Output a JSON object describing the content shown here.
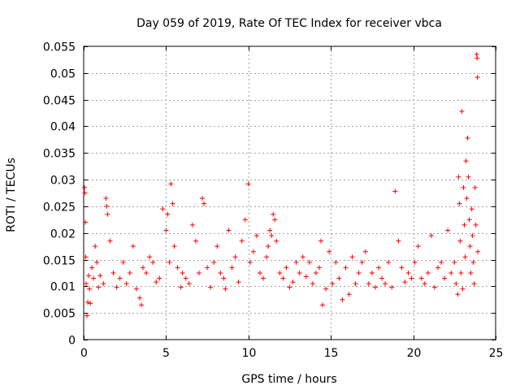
{
  "chart_data": {
    "type": "scatter",
    "title": "Day 059 of 2019, Rate Of TEC Index for receiver vbca",
    "xlabel": "GPS time / hours",
    "ylabel": "ROTI / TECUs",
    "xlim": [
      0,
      25
    ],
    "ylim": [
      0,
      0.055
    ],
    "grid": true,
    "marker": "+",
    "marker_color": "#ff0000",
    "x_ticks": [
      0,
      5,
      10,
      15,
      20,
      25
    ],
    "x_tick_labels": [
      "0",
      "5",
      "10",
      "15",
      "20",
      "25"
    ],
    "y_ticks": [
      0,
      0.005,
      0.01,
      0.015,
      0.02,
      0.025,
      0.03,
      0.035,
      0.04,
      0.045,
      0.05,
      0.055
    ],
    "y_tick_labels": [
      "0",
      "0.005",
      "0.01",
      "0.015",
      "0.02",
      "0.025",
      "0.03",
      "0.035",
      "0.04",
      "0.045",
      "0.05",
      "0.055"
    ],
    "series": [
      {
        "name": "ROTI",
        "points": [
          [
            0.05,
            0.0285
          ],
          [
            0.08,
            0.0275
          ],
          [
            0.1,
            0.022
          ],
          [
            0.12,
            0.0155
          ],
          [
            0.15,
            0.0105
          ],
          [
            0.2,
            0.0045
          ],
          [
            0.25,
            0.007
          ],
          [
            0.3,
            0.012
          ],
          [
            0.35,
            0.0095
          ],
          [
            0.4,
            0.0068
          ],
          [
            0.5,
            0.0135
          ],
          [
            0.6,
            0.0115
          ],
          [
            0.7,
            0.0175
          ],
          [
            0.8,
            0.0145
          ],
          [
            0.9,
            0.0098
          ],
          [
            1.0,
            0.012
          ],
          [
            1.2,
            0.0105
          ],
          [
            1.35,
            0.0265
          ],
          [
            1.4,
            0.025
          ],
          [
            1.45,
            0.0235
          ],
          [
            1.6,
            0.0185
          ],
          [
            1.8,
            0.0125
          ],
          [
            2.0,
            0.0098
          ],
          [
            2.2,
            0.0115
          ],
          [
            2.4,
            0.0145
          ],
          [
            2.6,
            0.0105
          ],
          [
            2.8,
            0.0125
          ],
          [
            3.0,
            0.0175
          ],
          [
            3.2,
            0.0095
          ],
          [
            3.4,
            0.0078
          ],
          [
            3.5,
            0.0065
          ],
          [
            3.6,
            0.0135
          ],
          [
            3.8,
            0.0125
          ],
          [
            4.0,
            0.0155
          ],
          [
            4.2,
            0.0145
          ],
          [
            4.4,
            0.0108
          ],
          [
            4.6,
            0.0115
          ],
          [
            4.8,
            0.0245
          ],
          [
            5.0,
            0.0205
          ],
          [
            5.1,
            0.0235
          ],
          [
            5.2,
            0.0145
          ],
          [
            5.3,
            0.0292
          ],
          [
            5.4,
            0.0255
          ],
          [
            5.5,
            0.0175
          ],
          [
            5.7,
            0.0135
          ],
          [
            5.9,
            0.0098
          ],
          [
            6.0,
            0.0125
          ],
          [
            6.2,
            0.0115
          ],
          [
            6.4,
            0.0105
          ],
          [
            6.6,
            0.0215
          ],
          [
            6.8,
            0.0185
          ],
          [
            7.0,
            0.0125
          ],
          [
            7.2,
            0.0265
          ],
          [
            7.3,
            0.0255
          ],
          [
            7.5,
            0.0135
          ],
          [
            7.7,
            0.0098
          ],
          [
            7.9,
            0.0145
          ],
          [
            8.1,
            0.0175
          ],
          [
            8.3,
            0.0125
          ],
          [
            8.5,
            0.0115
          ],
          [
            8.6,
            0.0095
          ],
          [
            8.8,
            0.0205
          ],
          [
            9.0,
            0.0135
          ],
          [
            9.2,
            0.0155
          ],
          [
            9.4,
            0.0108
          ],
          [
            9.6,
            0.0185
          ],
          [
            9.8,
            0.0225
          ],
          [
            10.0,
            0.0292
          ],
          [
            10.1,
            0.0145
          ],
          [
            10.3,
            0.0165
          ],
          [
            10.5,
            0.0195
          ],
          [
            10.7,
            0.0125
          ],
          [
            10.9,
            0.0115
          ],
          [
            11.1,
            0.0155
          ],
          [
            11.2,
            0.0175
          ],
          [
            11.3,
            0.0205
          ],
          [
            11.4,
            0.0195
          ],
          [
            11.5,
            0.0235
          ],
          [
            11.6,
            0.0225
          ],
          [
            11.7,
            0.0185
          ],
          [
            11.9,
            0.0125
          ],
          [
            12.1,
            0.0115
          ],
          [
            12.3,
            0.0135
          ],
          [
            12.5,
            0.0098
          ],
          [
            12.7,
            0.0108
          ],
          [
            12.9,
            0.0145
          ],
          [
            13.1,
            0.0125
          ],
          [
            13.3,
            0.0155
          ],
          [
            13.5,
            0.0118
          ],
          [
            13.7,
            0.0145
          ],
          [
            13.9,
            0.0105
          ],
          [
            14.1,
            0.0125
          ],
          [
            14.3,
            0.0135
          ],
          [
            14.4,
            0.0185
          ],
          [
            14.5,
            0.0065
          ],
          [
            14.7,
            0.0095
          ],
          [
            14.9,
            0.0165
          ],
          [
            15.1,
            0.0105
          ],
          [
            15.3,
            0.0145
          ],
          [
            15.5,
            0.0115
          ],
          [
            15.7,
            0.0075
          ],
          [
            15.9,
            0.0135
          ],
          [
            16.1,
            0.0085
          ],
          [
            16.3,
            0.0155
          ],
          [
            16.5,
            0.0105
          ],
          [
            16.7,
            0.0125
          ],
          [
            16.9,
            0.0145
          ],
          [
            17.1,
            0.0165
          ],
          [
            17.3,
            0.0105
          ],
          [
            17.5,
            0.0125
          ],
          [
            17.7,
            0.0098
          ],
          [
            17.9,
            0.0135
          ],
          [
            18.1,
            0.0115
          ],
          [
            18.3,
            0.0105
          ],
          [
            18.5,
            0.0145
          ],
          [
            18.7,
            0.0098
          ],
          [
            18.9,
            0.0278
          ],
          [
            19.1,
            0.0185
          ],
          [
            19.3,
            0.0135
          ],
          [
            19.5,
            0.0108
          ],
          [
            19.7,
            0.0125
          ],
          [
            19.9,
            0.0115
          ],
          [
            20.1,
            0.0145
          ],
          [
            20.3,
            0.0175
          ],
          [
            20.5,
            0.0115
          ],
          [
            20.7,
            0.0105
          ],
          [
            20.9,
            0.0125
          ],
          [
            21.1,
            0.0195
          ],
          [
            21.3,
            0.0098
          ],
          [
            21.5,
            0.0135
          ],
          [
            21.7,
            0.0145
          ],
          [
            21.9,
            0.0115
          ],
          [
            22.1,
            0.0205
          ],
          [
            22.3,
            0.0125
          ],
          [
            22.5,
            0.0145
          ],
          [
            22.6,
            0.0105
          ],
          [
            22.7,
            0.0085
          ],
          [
            22.75,
            0.0305
          ],
          [
            22.8,
            0.0255
          ],
          [
            22.85,
            0.0185
          ],
          [
            22.9,
            0.0125
          ],
          [
            22.95,
            0.0428
          ],
          [
            23.0,
            0.0095
          ],
          [
            23.05,
            0.0285
          ],
          [
            23.1,
            0.0215
          ],
          [
            23.15,
            0.0155
          ],
          [
            23.2,
            0.0335
          ],
          [
            23.25,
            0.0265
          ],
          [
            23.3,
            0.0378
          ],
          [
            23.35,
            0.0305
          ],
          [
            23.4,
            0.0225
          ],
          [
            23.45,
            0.0175
          ],
          [
            23.5,
            0.0125
          ],
          [
            23.55,
            0.0245
          ],
          [
            23.6,
            0.0195
          ],
          [
            23.65,
            0.0145
          ],
          [
            23.7,
            0.0105
          ],
          [
            23.75,
            0.0285
          ],
          [
            23.8,
            0.0215
          ],
          [
            23.85,
            0.0535
          ],
          [
            23.88,
            0.0528
          ],
          [
            23.9,
            0.0492
          ],
          [
            23.92,
            0.0165
          ]
        ]
      }
    ]
  }
}
